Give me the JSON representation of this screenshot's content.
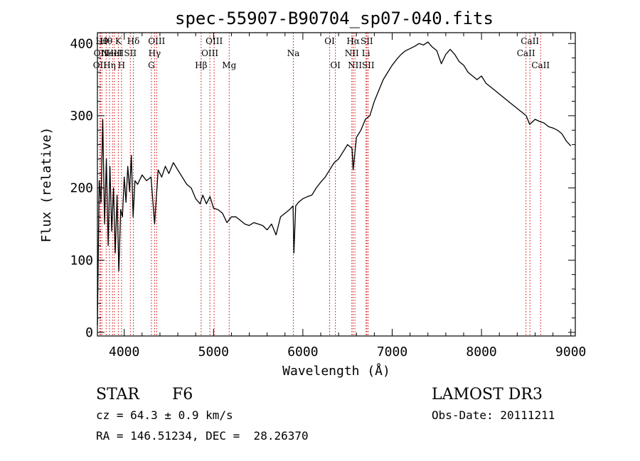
{
  "chart_data": {
    "type": "line",
    "title": "spec-55907-B90704_sp07-040.fits",
    "xlabel": "Wavelength (Å)",
    "ylabel": "Flux (relative)",
    "xlim": [
      3700,
      9050
    ],
    "ylim": [
      -5,
      415
    ],
    "xticks": [
      4000,
      5000,
      6000,
      7000,
      8000,
      9000
    ],
    "xtick_labels": [
      "4000",
      "5000",
      "6000",
      "7000",
      "8000",
      "9000"
    ],
    "yticks": [
      0,
      100,
      200,
      300,
      400
    ],
    "ytick_labels": [
      "0",
      "100",
      "200",
      "300",
      "400"
    ],
    "grid": false,
    "colors": {
      "spectrum": "#000000",
      "lines": "#cc0000",
      "axes": "#000000"
    },
    "series": [
      {
        "name": "spectrum",
        "x": [
          3700,
          3720,
          3740,
          3760,
          3780,
          3800,
          3820,
          3840,
          3860,
          3880,
          3900,
          3920,
          3940,
          3960,
          3980,
          4000,
          4020,
          4040,
          4060,
          4080,
          4100,
          4120,
          4150,
          4200,
          4250,
          4300,
          4340,
          4380,
          4420,
          4460,
          4500,
          4550,
          4600,
          4650,
          4700,
          4750,
          4800,
          4850,
          4880,
          4920,
          4960,
          5000,
          5050,
          5100,
          5150,
          5200,
          5250,
          5300,
          5350,
          5400,
          5450,
          5500,
          5550,
          5600,
          5650,
          5700,
          5750,
          5800,
          5850,
          5890,
          5900,
          5920,
          5950,
          6000,
          6050,
          6100,
          6150,
          6200,
          6250,
          6300,
          6350,
          6400,
          6450,
          6500,
          6550,
          6563,
          6600,
          6650,
          6700,
          6750,
          6800,
          6850,
          6900,
          6950,
          7000,
          7050,
          7100,
          7150,
          7200,
          7250,
          7300,
          7350,
          7400,
          7450,
          7500,
          7550,
          7600,
          7650,
          7700,
          7750,
          7800,
          7850,
          7900,
          7950,
          8000,
          8050,
          8100,
          8150,
          8200,
          8250,
          8300,
          8350,
          8400,
          8450,
          8500,
          8540,
          8600,
          8650,
          8700,
          8750,
          8800,
          8850,
          8900,
          8950,
          9000
        ],
        "y": [
          10,
          210,
          180,
          295,
          150,
          240,
          120,
          230,
          140,
          200,
          110,
          190,
          85,
          170,
          160,
          215,
          180,
          230,
          195,
          245,
          160,
          210,
          205,
          218,
          210,
          215,
          150,
          225,
          215,
          230,
          220,
          235,
          225,
          215,
          205,
          200,
          185,
          178,
          190,
          178,
          188,
          172,
          170,
          165,
          152,
          160,
          160,
          155,
          150,
          148,
          152,
          150,
          148,
          142,
          150,
          135,
          160,
          165,
          170,
          175,
          110,
          175,
          180,
          185,
          188,
          190,
          200,
          208,
          215,
          225,
          235,
          240,
          250,
          260,
          255,
          225,
          270,
          280,
          295,
          300,
          320,
          335,
          350,
          360,
          370,
          378,
          385,
          390,
          393,
          396,
          400,
          398,
          402,
          395,
          390,
          372,
          385,
          392,
          385,
          375,
          370,
          360,
          355,
          350,
          355,
          345,
          340,
          335,
          330,
          325,
          320,
          315,
          310,
          305,
          300,
          288,
          295,
          292,
          290,
          285,
          283,
          280,
          275,
          265,
          258
        ]
      }
    ],
    "spectral_lines": [
      {
        "x": 3727,
        "label": "OII",
        "row": 3
      },
      {
        "x": 3734,
        "label": "OII",
        "row": 2
      },
      {
        "x": 3750,
        "label": "Hθ",
        "row": 1
      },
      {
        "x": 3798,
        "label": "Hθ",
        "row": 1
      },
      {
        "x": 3835,
        "label": "Hη",
        "row": 3
      },
      {
        "x": 3869,
        "label": "NeIII",
        "row": 2
      },
      {
        "x": 3889,
        "label": "HeI",
        "row": 2
      },
      {
        "x": 3934,
        "label": "K",
        "row": 1
      },
      {
        "x": 3970,
        "label": "H",
        "row": 3
      },
      {
        "x": 4068,
        "label": "SII",
        "row": 2
      },
      {
        "x": 4102,
        "label": "Hδ",
        "row": 1
      },
      {
        "x": 4304,
        "label": "G",
        "row": 3
      },
      {
        "x": 4340,
        "label": "Hγ",
        "row": 2
      },
      {
        "x": 4363,
        "label": "OIII",
        "row": 1
      },
      {
        "x": 4861,
        "label": "Hβ",
        "row": 3
      },
      {
        "x": 4959,
        "label": "OIII",
        "row": 2
      },
      {
        "x": 5007,
        "label": "OIII",
        "row": 1
      },
      {
        "x": 5175,
        "label": "Mg",
        "row": 3
      },
      {
        "x": 5893,
        "label": "Na",
        "row": 2
      },
      {
        "x": 6300,
        "label": "OI",
        "row": 1
      },
      {
        "x": 6364,
        "label": "OI",
        "row": 3
      },
      {
        "x": 6548,
        "label": "NII",
        "row": 2
      },
      {
        "x": 6563,
        "label": "Hα",
        "row": 1
      },
      {
        "x": 6583,
        "label": "NII",
        "row": 3
      },
      {
        "x": 6707,
        "label": "Li",
        "row": 2
      },
      {
        "x": 6716,
        "label": "SII",
        "row": 1
      },
      {
        "x": 6731,
        "label": "SII",
        "row": 3
      },
      {
        "x": 8498,
        "label": "CaII",
        "row": 2
      },
      {
        "x": 8542,
        "label": "CaII",
        "row": 1
      },
      {
        "x": 8662,
        "label": "CaII",
        "row": 3
      }
    ]
  },
  "info": {
    "classification": "STAR",
    "subclass": "F6",
    "redshift": "cz = 64.3 ± 0.9 km/s",
    "coordinates": "RA = 146.51234, DEC =  28.26370",
    "survey": "LAMOST DR3",
    "obs_date": "Obs-Date: 20111211"
  }
}
